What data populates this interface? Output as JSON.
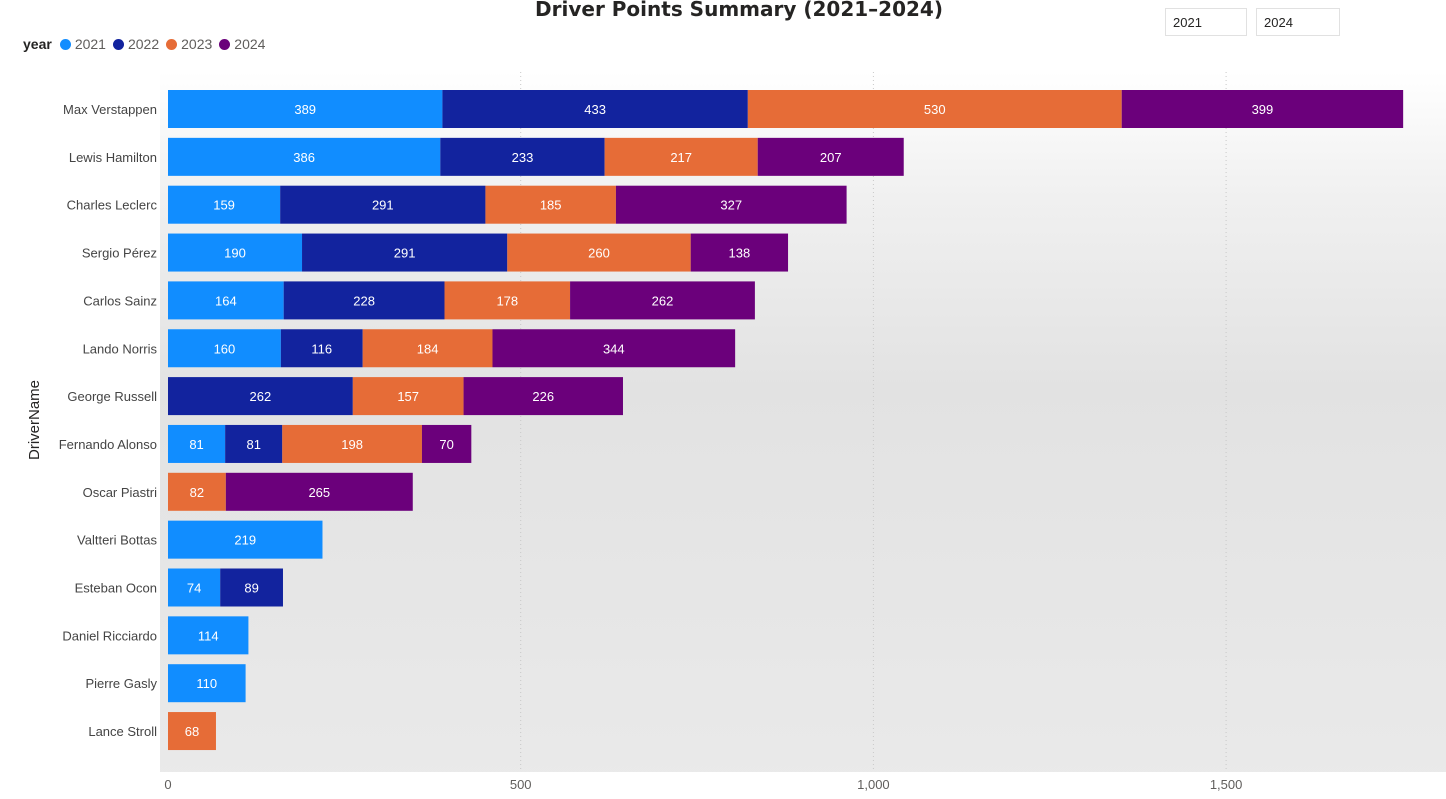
{
  "colors": {
    "y2021": "#118DFF",
    "y2022": "#12239E",
    "y2023": "#E66C37",
    "y2024": "#6B007B",
    "grid": "#c8c8c8",
    "axis_text": "#605e5c",
    "label_text": "#ffffff",
    "title": "#252423"
  },
  "slicer": {
    "start": "2021",
    "end": "2024"
  },
  "legend": {
    "title": "year",
    "items": [
      {
        "label": "2021",
        "color": "#118DFF"
      },
      {
        "label": "2022",
        "color": "#12239E"
      },
      {
        "label": "2023",
        "color": "#E66C37"
      },
      {
        "label": "2024",
        "color": "#6B007B"
      }
    ]
  },
  "chart_data": {
    "type": "bar",
    "orientation": "horizontal",
    "stacked": true,
    "title": "Driver Points Summary (2021–2024)",
    "ylabel": "DriverName",
    "xlabel": "",
    "xlim": [
      0,
      1800
    ],
    "xticks": [
      0,
      500,
      1000,
      1500
    ],
    "xtick_labels": [
      "0",
      "500",
      "1,000",
      "1,500"
    ],
    "grid": true,
    "legend_position": "top-left",
    "categories": [
      "Max Verstappen",
      "Lewis Hamilton",
      "Charles Leclerc",
      "Sergio Pérez",
      "Carlos Sainz",
      "Lando Norris",
      "George Russell",
      "Fernando Alonso",
      "Oscar Piastri",
      "Valtteri Bottas",
      "Esteban Ocon",
      "Daniel Ricciardo",
      "Pierre Gasly",
      "Lance Stroll"
    ],
    "series": [
      {
        "name": "2021",
        "color": "#118DFF",
        "values": [
          389,
          386,
          159,
          190,
          164,
          160,
          null,
          81,
          null,
          219,
          74,
          114,
          110,
          null
        ]
      },
      {
        "name": "2022",
        "color": "#12239E",
        "values": [
          433,
          233,
          291,
          291,
          228,
          116,
          262,
          81,
          null,
          null,
          89,
          null,
          null,
          null
        ]
      },
      {
        "name": "2023",
        "color": "#E66C37",
        "values": [
          530,
          217,
          185,
          260,
          178,
          184,
          157,
          198,
          82,
          null,
          null,
          null,
          null,
          68
        ]
      },
      {
        "name": "2024",
        "color": "#6B007B",
        "values": [
          399,
          207,
          327,
          138,
          262,
          344,
          226,
          70,
          265,
          null,
          null,
          null,
          null,
          null
        ]
      }
    ]
  }
}
